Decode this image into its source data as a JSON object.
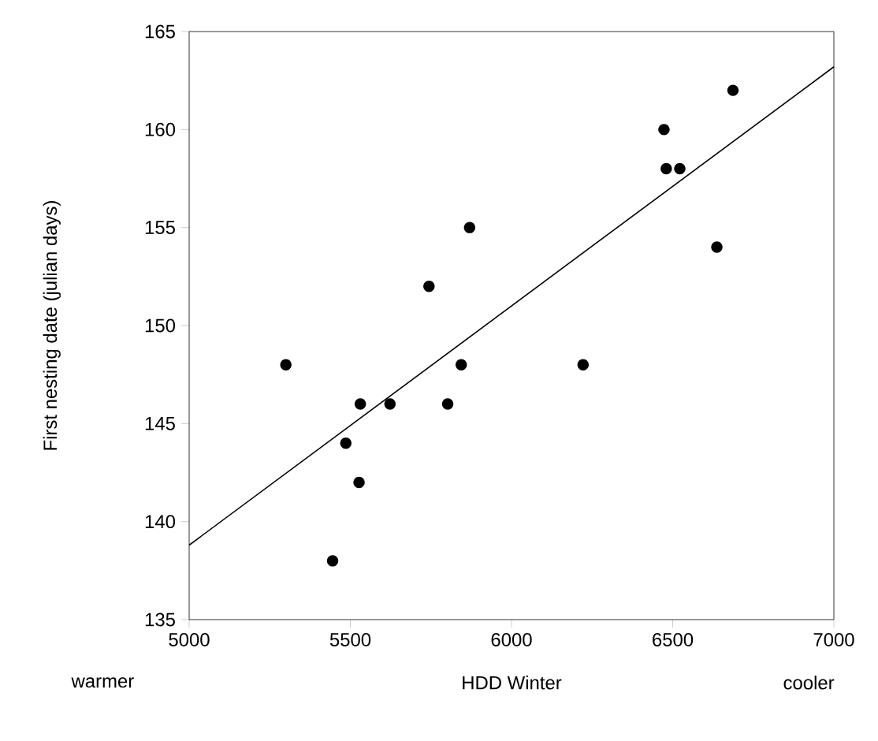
{
  "chart_data": {
    "type": "scatter",
    "xlabel": "HDD Winter",
    "ylabel": "First nesting date (julian days)",
    "annotations": [
      "warmer",
      "cooler"
    ],
    "xlim": [
      5000,
      7000
    ],
    "xticks": [
      5000,
      5500,
      6000,
      6500,
      7000
    ],
    "ylim": [
      135,
      165
    ],
    "yticks": [
      135,
      140,
      145,
      150,
      155,
      160,
      165
    ],
    "marker": "circle",
    "series": [
      {
        "color": "#000000",
        "x": [
          5300,
          5445,
          5486,
          5527,
          5531,
          5623,
          5744,
          5802,
          5844,
          5870,
          6222,
          6473,
          6480,
          6522,
          6637,
          6687
        ],
        "values": [
          148,
          138,
          144,
          142,
          146,
          146,
          152,
          146,
          148,
          155,
          148,
          160,
          158,
          158,
          154,
          162
        ]
      },
      {
        "type": "line",
        "marker": "none",
        "color": "#000000",
        "line_style": "solid",
        "x": [
          5000,
          7000
        ],
        "values": [
          138.8,
          163.2
        ]
      }
    ]
  }
}
